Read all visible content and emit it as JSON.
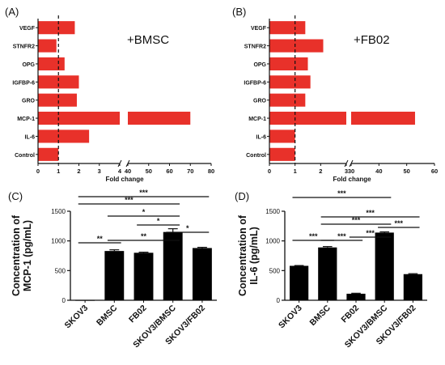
{
  "chart_data": [
    {
      "type": "bar",
      "orientation": "horizontal",
      "panel_label": "(A)",
      "annotation": "+BMSC",
      "categories": [
        "VEGF",
        "STNFR2",
        "OPG",
        "IGFBP-6",
        "GRO",
        "MCP-1",
        "IL-6",
        "Control"
      ],
      "values": [
        1.8,
        0.9,
        1.3,
        2.0,
        1.9,
        70,
        2.5,
        1.0
      ],
      "bar_color": "#e8312a",
      "xlabel": "Fold change",
      "xticks": [
        "0",
        "1",
        "2",
        "3",
        "4",
        "40",
        "50",
        "60",
        "70",
        "80"
      ],
      "axis_break": {
        "low_max": 4,
        "high_min": 40,
        "high_max": 80
      },
      "reference_line": 1
    },
    {
      "type": "bar",
      "orientation": "horizontal",
      "panel_label": "(B)",
      "annotation": "+FB02",
      "categories": [
        "VEGF",
        "STNFR2",
        "OPG",
        "IGFBP-6",
        "GRO",
        "MCP-1",
        "IL-6",
        "Control"
      ],
      "values": [
        1.4,
        2.1,
        1.5,
        1.6,
        1.4,
        53,
        1.0,
        1.0
      ],
      "bar_color": "#e8312a",
      "xlabel": "Fold change",
      "xticks": [
        "0",
        "1",
        "2",
        "3",
        "30",
        "40",
        "50",
        "60"
      ],
      "axis_break": {
        "low_max": 3,
        "high_min": 30,
        "high_max": 60
      },
      "reference_line": 1
    },
    {
      "type": "bar",
      "panel_label": "(C)",
      "categories": [
        "SKOV3",
        "BMSC",
        "FB02",
        "SKOV3/BMSC",
        "SKOV3/FB02"
      ],
      "values": [
        5,
        830,
        800,
        1150,
        880
      ],
      "errors": [
        0,
        20,
        10,
        55,
        12
      ],
      "bar_color": "#000000",
      "ylabel": "Concentration of MCP-1 (pg/mL)",
      "ylim": [
        0,
        1500
      ],
      "yticks": [
        "0",
        "500",
        "1000",
        "1500"
      ],
      "significance": [
        {
          "from": 0,
          "to": 1,
          "label": "**"
        },
        {
          "from": 1,
          "to": 3,
          "label": "**"
        },
        {
          "from": 3,
          "to": 4,
          "label": "*"
        },
        {
          "from": 2,
          "to": 3,
          "label": "*"
        },
        {
          "from": 1,
          "to": 3,
          "label": "*"
        },
        {
          "from": 0,
          "to": 3,
          "label": "***"
        },
        {
          "from": 0,
          "to": 4,
          "label": "***"
        }
      ]
    },
    {
      "type": "bar",
      "panel_label": "(D)",
      "categories": [
        "SKOV3",
        "BMSC",
        "FB02",
        "SKOV3/BMSC",
        "SKOV3/FB02"
      ],
      "values": [
        580,
        890,
        110,
        1140,
        440
      ],
      "errors": [
        5,
        15,
        8,
        12,
        8
      ],
      "bar_color": "#000000",
      "ylabel": "Concentration of IL-6 (pg/mL)",
      "ylim": [
        0,
        1500
      ],
      "yticks": [
        "0",
        "500",
        "1000",
        "1500"
      ],
      "significance": [
        {
          "from": 0,
          "to": 1,
          "label": "***"
        },
        {
          "from": 1,
          "to": 2,
          "label": "***"
        },
        {
          "from": 2,
          "to": 3,
          "label": "***"
        },
        {
          "from": 3,
          "to": 4,
          "label": "***"
        },
        {
          "from": 1,
          "to": 3,
          "label": "***"
        },
        {
          "from": 1,
          "to": 4,
          "label": "***"
        },
        {
          "from": 0,
          "to": 3,
          "label": "***"
        }
      ]
    }
  ]
}
